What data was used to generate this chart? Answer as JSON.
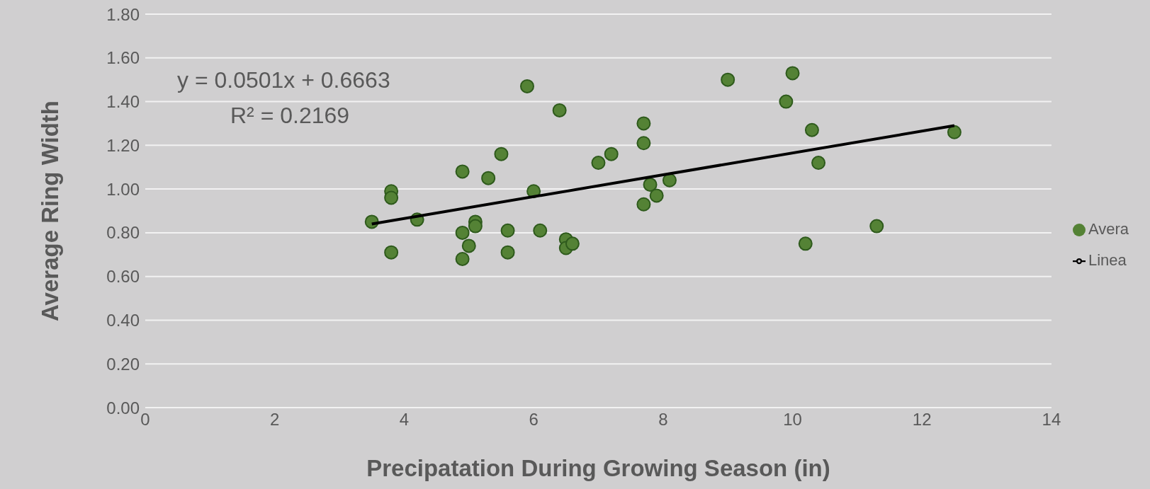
{
  "chart_data": {
    "type": "scatter",
    "xlabel": "Precipatation During Growing Season (in)",
    "ylabel": "Average Ring Width",
    "x": [
      3.5,
      3.8,
      3.8,
      3.8,
      4.2,
      4.9,
      4.9,
      4.9,
      5.0,
      5.1,
      5.1,
      5.3,
      5.5,
      5.6,
      5.6,
      5.9,
      6.0,
      6.1,
      6.4,
      6.5,
      6.5,
      6.6,
      7.0,
      7.2,
      7.7,
      7.7,
      7.7,
      7.8,
      7.9,
      8.1,
      9.0,
      10.0,
      9.9,
      10.3,
      10.4,
      10.2,
      11.3,
      12.5
    ],
    "series": [
      {
        "name": "Avera",
        "type": "scatter",
        "color": "#548235",
        "marker": "circle",
        "values": [
          0.85,
          0.99,
          0.96,
          0.71,
          0.86,
          1.08,
          0.8,
          0.68,
          0.74,
          0.85,
          0.83,
          1.05,
          1.16,
          0.81,
          0.71,
          1.47,
          0.99,
          0.81,
          1.36,
          0.77,
          0.73,
          0.75,
          1.12,
          1.16,
          1.3,
          1.21,
          0.93,
          1.02,
          0.97,
          1.04,
          1.5,
          1.53,
          1.4,
          1.27,
          1.12,
          0.75,
          0.83,
          1.26
        ]
      },
      {
        "name": "Linea",
        "type": "line",
        "color": "#000000",
        "marker": "none",
        "line_style": "solid",
        "x": [
          3.5,
          12.5
        ],
        "values": [
          0.84,
          1.29
        ]
      }
    ],
    "xlim": [
      0,
      14
    ],
    "xticks": [
      0,
      2,
      4,
      6,
      8,
      10,
      12,
      14
    ],
    "ylim": [
      0,
      1.8
    ],
    "yticks": [
      {
        "value": 0,
        "label": "0.00"
      },
      {
        "value": 0.2,
        "label": "0.20"
      },
      {
        "value": 0.4,
        "label": "0.40"
      },
      {
        "value": 0.6,
        "label": "0.60"
      },
      {
        "value": 0.8,
        "label": "0.80"
      },
      {
        "value": 1.0,
        "label": "1.00"
      },
      {
        "value": 1.2,
        "label": "1.20"
      },
      {
        "value": 1.4,
        "label": "1.40"
      },
      {
        "value": 1.6,
        "label": "1.60"
      },
      {
        "value": 1.8,
        "label": "1.80"
      }
    ],
    "grid": "y",
    "legend": "right",
    "annotations": [
      "y = 0.0501x + 0.6663",
      "R² = 0.2169"
    ]
  }
}
